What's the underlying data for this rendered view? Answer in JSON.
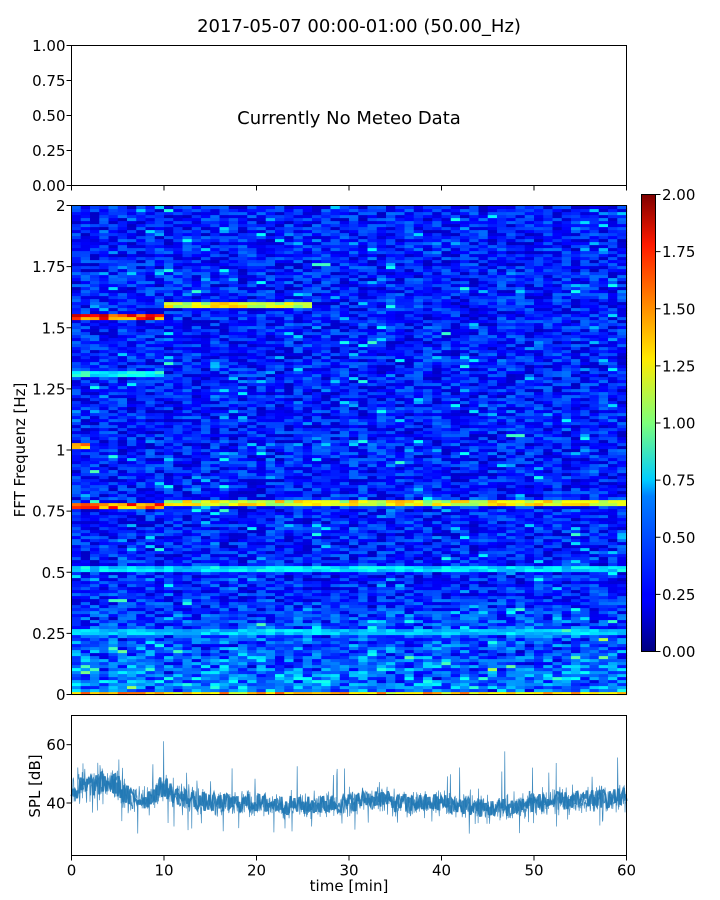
{
  "figure": {
    "title": "2017-05-07 00:00-01:00 (50.00_Hz)"
  },
  "chart_data": [
    {
      "type": "line",
      "panel": "meteo",
      "annotation": "Currently No Meteo Data",
      "ylim": [
        0.0,
        1.0
      ],
      "yticks": [
        "0.00",
        "0.25",
        "0.50",
        "0.75",
        "1.00"
      ],
      "xlim": [
        0,
        60
      ],
      "series": []
    },
    {
      "type": "heatmap",
      "panel": "spectrogram",
      "ylabel": "FFT Frequenz [Hz]",
      "ylim": [
        0,
        2
      ],
      "yticks": [
        "0",
        "0.25",
        "0.5",
        "0.75",
        "1",
        "1.25",
        "1.5",
        "1.75",
        "2"
      ],
      "xlim": [
        0,
        60
      ],
      "colormap": "jet",
      "colorbar": {
        "range": [
          0.0,
          2.0
        ],
        "ticks": [
          "0.00",
          "0.25",
          "0.50",
          "0.75",
          "1.00",
          "1.25",
          "1.50",
          "1.75",
          "2.00"
        ]
      },
      "background_level": 0.3,
      "features": [
        {
          "frequency": 0.0,
          "level": 1.6,
          "x_range": [
            0,
            60
          ]
        },
        {
          "frequency": 0.26,
          "level": 0.75,
          "x_range": [
            0,
            60
          ]
        },
        {
          "frequency": 0.51,
          "level": 0.8,
          "x_range": [
            0,
            60
          ]
        },
        {
          "frequency": 0.77,
          "level": 1.8,
          "x_range": [
            0,
            10
          ]
        },
        {
          "frequency": 0.79,
          "level": 1.4,
          "x_range": [
            10,
            60
          ]
        },
        {
          "frequency": 1.02,
          "level": 1.7,
          "x_range": [
            0,
            2
          ]
        },
        {
          "frequency": 1.31,
          "level": 0.9,
          "x_range": [
            0,
            10
          ]
        },
        {
          "frequency": 1.55,
          "level": 1.9,
          "x_range": [
            0,
            10
          ]
        },
        {
          "frequency": 1.6,
          "level": 1.4,
          "x_range": [
            10,
            26
          ]
        }
      ]
    },
    {
      "type": "line",
      "panel": "spl",
      "ylabel": "SPL [dB]",
      "xlabel": "time [min]",
      "xlim": [
        0,
        60
      ],
      "ylim": [
        22,
        70
      ],
      "yticks": [
        "40",
        "60"
      ],
      "xticks": [
        "0",
        "10",
        "20",
        "30",
        "40",
        "50",
        "60"
      ],
      "color": "#1f77b4",
      "series": [
        {
          "x": [
            0,
            2,
            4,
            5,
            6,
            8,
            10,
            11,
            13,
            15,
            20,
            25,
            30,
            33,
            35,
            40,
            45,
            48,
            50,
            55,
            60
          ],
          "mean": [
            44,
            46,
            47,
            46,
            42,
            41,
            46,
            43,
            41,
            40,
            40,
            39,
            40,
            42,
            40,
            40,
            38,
            39,
            40,
            41,
            42
          ],
          "spread": [
            5,
            5,
            5,
            5,
            5,
            4,
            5,
            4,
            4,
            4,
            4,
            4,
            4,
            4,
            4,
            4,
            4,
            4,
            4,
            4,
            4
          ],
          "max": [
            52,
            55,
            58,
            67,
            54,
            53,
            63,
            57,
            52,
            53,
            51,
            55,
            54,
            62,
            56,
            54,
            64,
            56,
            55,
            64,
            58
          ],
          "min": [
            33,
            36,
            33,
            25,
            30,
            27,
            30,
            32,
            30,
            30,
            30,
            29,
            30,
            29,
            28,
            30,
            28,
            29,
            28,
            30,
            31
          ]
        }
      ]
    }
  ]
}
